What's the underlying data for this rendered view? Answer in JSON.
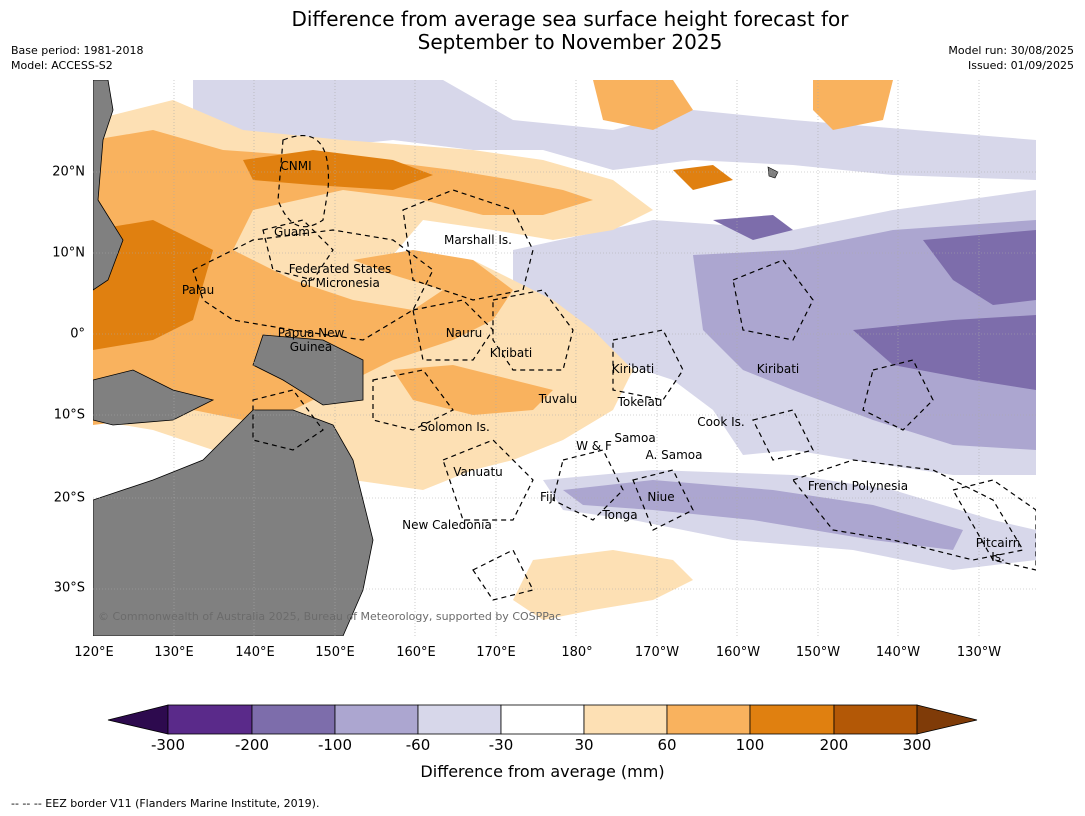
{
  "header": {
    "title_line1": "Difference from average sea surface height forecast for",
    "title_line2": "September to November 2025",
    "base_period": "Base period: 1981-2018",
    "model": "Model: ACCESS-S2",
    "model_run": "Model run: 30/08/2025",
    "issued": "Issued: 01/09/2025"
  },
  "map": {
    "lon_labels": [
      "120°E",
      "130°E",
      "140°E",
      "150°E",
      "160°E",
      "170°E",
      "180°",
      "170°W",
      "160°W",
      "150°W",
      "140°W",
      "130°W"
    ],
    "lat_labels": [
      "20°N",
      "10°N",
      "0°",
      "10°S",
      "20°S",
      "30°S"
    ],
    "copyright": "© Commonwealth of Australia 2025, Bureau of Meteorology, supported by COSPPac",
    "place_labels": {
      "cnmi": "CNMI",
      "guam": "Guam",
      "marshall": "Marshall Is.",
      "fsm_line1": "Federated States",
      "fsm_line2": "of Micronesia",
      "palau": "Palau",
      "nauru": "Nauru",
      "png_line1": "Papua New",
      "png_line2": "Guinea",
      "kiribati_w": "Kiribati",
      "kiribati_c": "Kiribati",
      "kiribati_e": "Kiribati",
      "tuvalu": "Tuvalu",
      "tokelau": "Tokelau",
      "solomon": "Solomon Is.",
      "cook": "Cook Is.",
      "samoa": "Samoa",
      "wf": "W & F",
      "asamoa": "A. Samoa",
      "vanuatu": "Vanuatu",
      "fiji": "Fiji",
      "niue": "Niue",
      "tonga": "Tonga",
      "frenchpoly": "French Polynesia",
      "newcal": "New Caledonia",
      "pitcairn_line1": "Pitcairn",
      "pitcairn_line2": "Is."
    }
  },
  "colorbar": {
    "label": "Difference from average (mm)",
    "ticks": [
      "-300",
      "-200",
      "-100",
      "-60",
      "-30",
      "30",
      "60",
      "100",
      "200",
      "300"
    ],
    "colors": {
      "below_min": "#2d0a4e",
      "c1": "#5a2a8a",
      "c2": "#7d6dab",
      "c3": "#aca6d0",
      "c4": "#d7d7ea",
      "c5": "#ffffff",
      "c6": "#fde0b4",
      "c7": "#f9b25e",
      "c8": "#e08010",
      "c9": "#b35806",
      "above_max": "#7f3b08"
    }
  },
  "footnote": "--  --  -- EEZ border V11 (Flanders Marine Institute, 2019)."
}
